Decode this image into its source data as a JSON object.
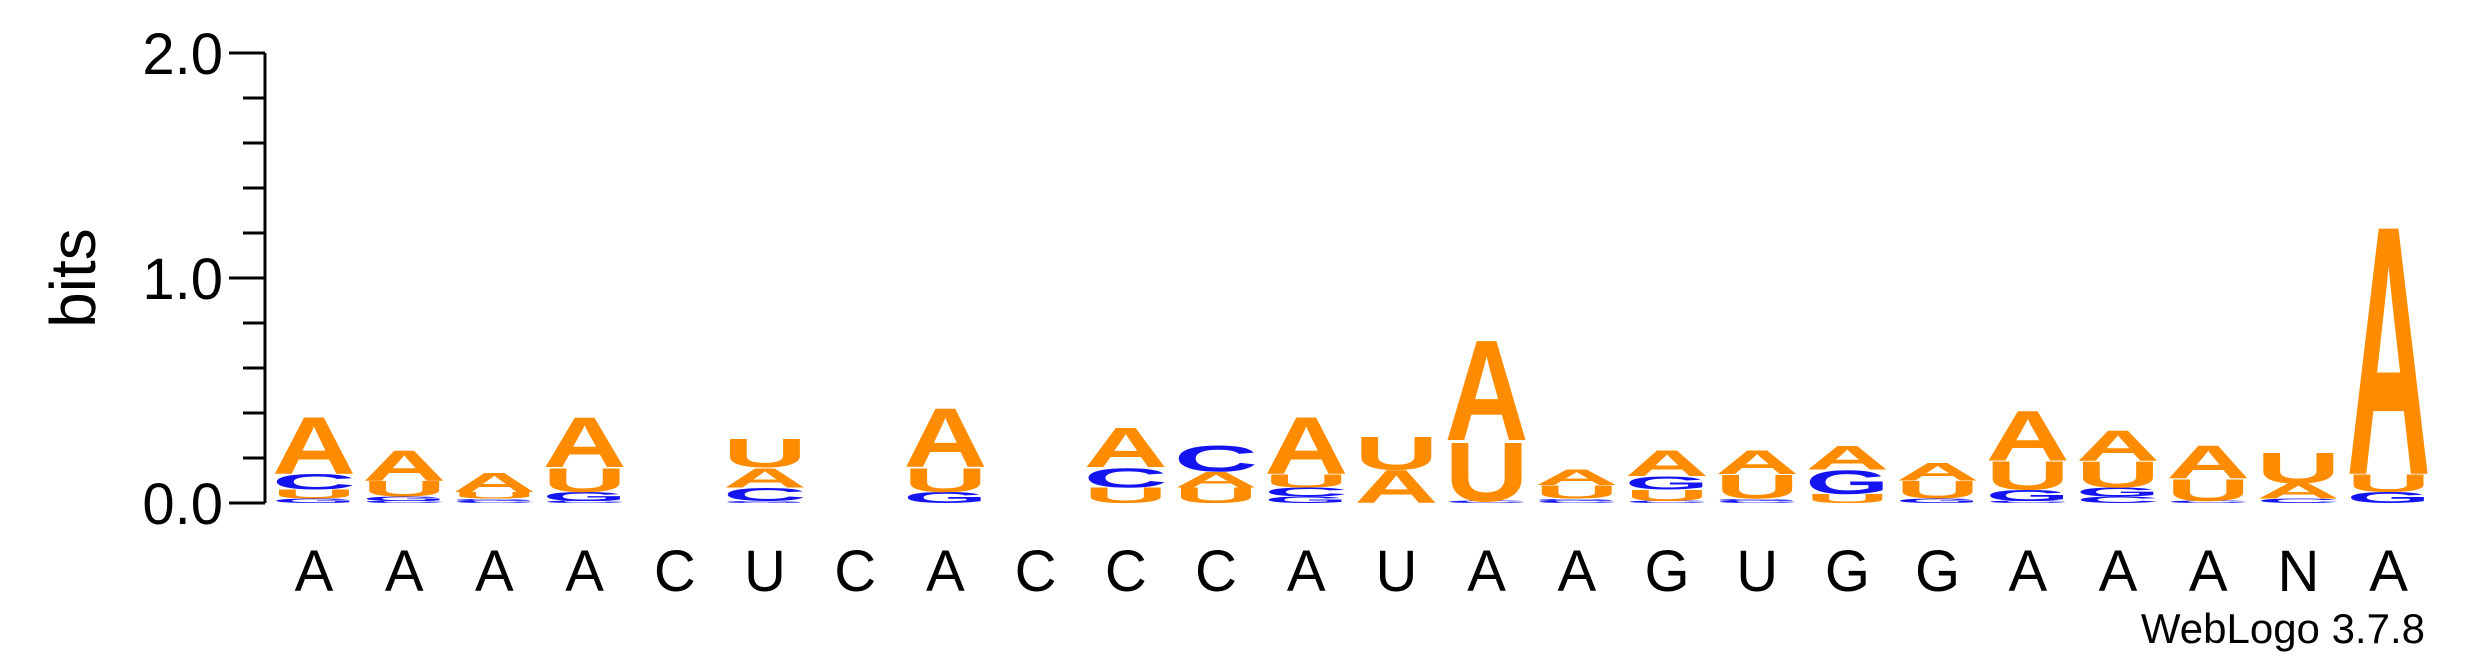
{
  "chart_data": {
    "type": "sequence-logo",
    "ylabel": "bits",
    "ylim": [
      0,
      2.0
    ],
    "y_ticks": [
      {
        "value": 0.0,
        "label": "0.0"
      },
      {
        "value": 1.0,
        "label": "1.0"
      },
      {
        "value": 2.0,
        "label": "2.0"
      }
    ],
    "credit": "WebLogo 3.7.8",
    "colors": {
      "A": "#ff8c00",
      "U": "#ff8c00",
      "C": "#1414f0",
      "G": "#1414f0"
    },
    "columns": [
      {
        "label": "A",
        "stack": [
          [
            "G",
            0.02
          ],
          [
            "U",
            0.04
          ],
          [
            "C",
            0.07
          ],
          [
            "A",
            0.26
          ]
        ]
      },
      {
        "label": "A",
        "stack": [
          [
            "C",
            0.01
          ],
          [
            "G",
            0.02
          ],
          [
            "U",
            0.07
          ],
          [
            "A",
            0.14
          ]
        ]
      },
      {
        "label": "A",
        "stack": [
          [
            "C",
            0.01
          ],
          [
            "G",
            0.01
          ],
          [
            "U",
            0.03
          ],
          [
            "A",
            0.09
          ]
        ]
      },
      {
        "label": "A",
        "stack": [
          [
            "C",
            0.01
          ],
          [
            "G",
            0.04
          ],
          [
            "U",
            0.11
          ],
          [
            "A",
            0.23
          ]
        ]
      },
      {
        "label": "C",
        "stack": []
      },
      {
        "label": "U",
        "stack": [
          [
            "G",
            0.01
          ],
          [
            "C",
            0.06
          ],
          [
            "A",
            0.09
          ],
          [
            "U",
            0.13
          ]
        ]
      },
      {
        "label": "C",
        "stack": []
      },
      {
        "label": "A",
        "stack": [
          [
            "G",
            0.05
          ],
          [
            "U",
            0.11
          ],
          [
            "A",
            0.27
          ]
        ]
      },
      {
        "label": "C",
        "stack": []
      },
      {
        "label": "C",
        "stack": [
          [
            "U",
            0.07
          ],
          [
            "C",
            0.09
          ],
          [
            "A",
            0.18
          ]
        ]
      },
      {
        "label": "C",
        "stack": [
          [
            "U",
            0.07
          ],
          [
            "A",
            0.07
          ],
          [
            "C",
            0.12
          ]
        ]
      },
      {
        "label": "A",
        "stack": [
          [
            "G",
            0.03
          ],
          [
            "C",
            0.04
          ],
          [
            "U",
            0.06
          ],
          [
            "A",
            0.26
          ]
        ]
      },
      {
        "label": "U",
        "stack": [
          [
            "A",
            0.15
          ],
          [
            "U",
            0.15
          ]
        ]
      },
      {
        "label": "A",
        "stack": [
          [
            "C",
            0.01
          ],
          [
            "U",
            0.27
          ],
          [
            "A",
            0.46
          ]
        ]
      },
      {
        "label": "A",
        "stack": [
          [
            "C",
            0.01
          ],
          [
            "G",
            0.01
          ],
          [
            "U",
            0.06
          ],
          [
            "A",
            0.07
          ]
        ]
      },
      {
        "label": "G",
        "stack": [
          [
            "C",
            0.01
          ],
          [
            "U",
            0.05
          ],
          [
            "G",
            0.06
          ],
          [
            "A",
            0.12
          ]
        ]
      },
      {
        "label": "U",
        "stack": [
          [
            "C",
            0.01
          ],
          [
            "G",
            0.01
          ],
          [
            "U",
            0.11
          ],
          [
            "A",
            0.11
          ]
        ]
      },
      {
        "label": "G",
        "stack": [
          [
            "U",
            0.04
          ],
          [
            "G",
            0.11
          ],
          [
            "A",
            0.11
          ]
        ]
      },
      {
        "label": "G",
        "stack": [
          [
            "G",
            0.02
          ],
          [
            "U",
            0.08
          ],
          [
            "A",
            0.08
          ]
        ]
      },
      {
        "label": "A",
        "stack": [
          [
            "C",
            0.01
          ],
          [
            "G",
            0.05
          ],
          [
            "U",
            0.13
          ],
          [
            "A",
            0.23
          ]
        ]
      },
      {
        "label": "A",
        "stack": [
          [
            "C",
            0.03
          ],
          [
            "G",
            0.04
          ],
          [
            "U",
            0.12
          ],
          [
            "A",
            0.14
          ]
        ]
      },
      {
        "label": "A",
        "stack": [
          [
            "C",
            0.01
          ],
          [
            "U",
            0.1
          ],
          [
            "A",
            0.15
          ]
        ]
      },
      {
        "label": "N",
        "stack": [
          [
            "C",
            0.02
          ],
          [
            "A",
            0.07
          ],
          [
            "U",
            0.14
          ]
        ]
      },
      {
        "label": "A",
        "stack": [
          [
            "G",
            0.05
          ],
          [
            "U",
            0.08
          ],
          [
            "A",
            1.14
          ]
        ]
      }
    ]
  }
}
